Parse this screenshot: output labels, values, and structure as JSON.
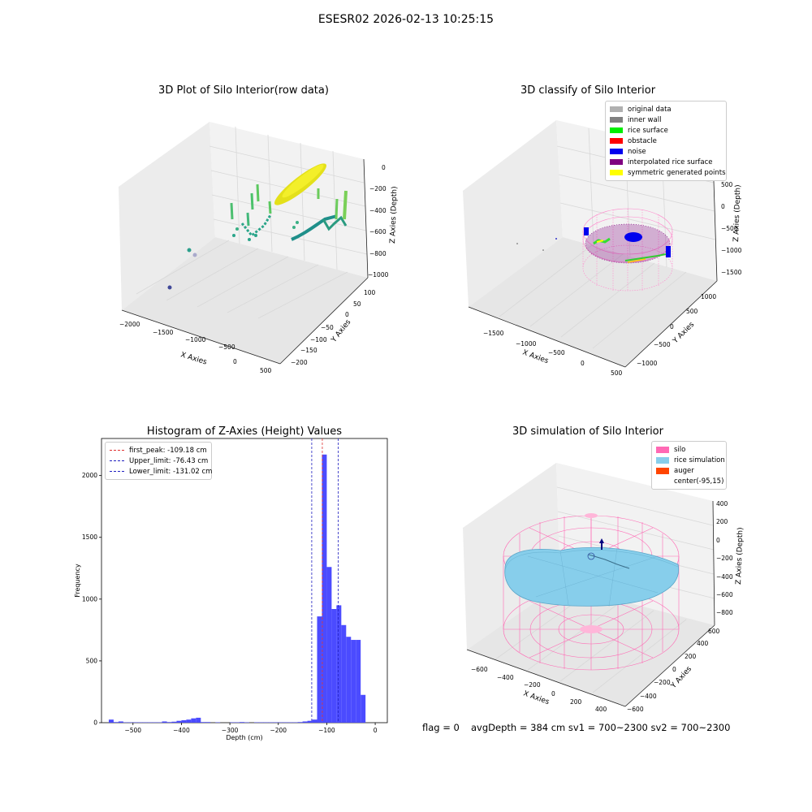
{
  "suptitle": "ESESR02 2026-02-13 10:25:15",
  "colors": {
    "hist_bar": "#4b4bff",
    "peak_line": "#e03030",
    "limit_line": "#2020c0",
    "silo": "#ff69b4",
    "rice": "#87ceeb",
    "auger": "#ff4500"
  },
  "panel1": {
    "title": "3D Plot of Silo Interior(row data)",
    "xlabel": "X Axies",
    "ylabel": "Y Axies",
    "zlabel": "Z Axies (Depth)",
    "xticks": [
      "−2000",
      "−1500",
      "−1000",
      "−500",
      "0",
      "500"
    ],
    "yticks": [
      "100",
      "50",
      "0",
      "−50",
      "−100",
      "−150",
      "−200"
    ],
    "zticks": [
      "0",
      "−200",
      "−400",
      "−600",
      "−800",
      "−1000"
    ]
  },
  "panel2": {
    "title": "3D classify of Silo Interior",
    "xlabel": "X Axies",
    "ylabel": "Y Axies",
    "zlabel": "Z Axies (Depth)",
    "xticks": [
      "−1500",
      "−1000",
      "−500",
      "0",
      "500"
    ],
    "yticks": [
      "1000",
      "500",
      "0",
      "−500",
      "−1000"
    ],
    "zticks": [
      "500",
      "0",
      "−500",
      "−1000",
      "−1500"
    ],
    "legend": [
      {
        "label": "original data",
        "color": "#b0b0b0"
      },
      {
        "label": "inner wall",
        "color": "#808080"
      },
      {
        "label": "rice surface",
        "color": "#00ee00"
      },
      {
        "label": "obstacle",
        "color": "#ff0000"
      },
      {
        "label": "noise",
        "color": "#0000ee"
      },
      {
        "label": "interpolated rice surface",
        "color": "#800080"
      },
      {
        "label": "symmetric generated points",
        "color": "#ffff00"
      }
    ]
  },
  "panel4": {
    "title": "3D simulation of Silo Interior",
    "xlabel": "X Axies",
    "ylabel": "Y Axies",
    "zlabel": "Z Axies (Depth)",
    "xticks": [
      "−600",
      "−400",
      "−200",
      "0",
      "200",
      "400"
    ],
    "yticks": [
      "600",
      "400",
      "200",
      "0",
      "−200",
      "−400",
      "−600"
    ],
    "zticks": [
      "400",
      "200",
      "0",
      "−200",
      "−400",
      "−600",
      "−800"
    ],
    "legend": [
      {
        "label": "silo",
        "color": "#ff69b4"
      },
      {
        "label": "rice simulation",
        "color": "#87ceeb"
      },
      {
        "label": "auger",
        "color": "#ff4500"
      },
      {
        "label": "center(-95,15)",
        "color": ""
      }
    ]
  },
  "footer": {
    "flag": "flag = 0",
    "stats": "avgDepth = 384 cm  sv1 = 700~2300  sv2 = 700~2300"
  },
  "chart_data": [
    {
      "type": "scatter",
      "title": "3D Plot of Silo Interior(row data)",
      "xlabel": "X Axies",
      "ylabel": "Y Axies",
      "zlabel": "Z Axies (Depth)",
      "xlim": [
        -2000,
        500
      ],
      "ylim": [
        -200,
        100
      ],
      "zlim": [
        -1000,
        0
      ]
    },
    {
      "type": "scatter",
      "title": "3D classify of Silo Interior",
      "xlabel": "X Axies",
      "ylabel": "Y Axies",
      "zlabel": "Z Axies (Depth)",
      "xlim": [
        -1500,
        500
      ],
      "ylim": [
        -1000,
        1000
      ],
      "zlim": [
        -1500,
        500
      ],
      "legend_position": "top-right"
    },
    {
      "type": "bar",
      "title": "Histogram of Z-Axies (Height) Values",
      "xlabel": "Depth (cm)",
      "ylabel": "Frequency",
      "xlim": [
        -565,
        25
      ],
      "ylim": [
        0,
        2300
      ],
      "xticks": [
        -500,
        -400,
        -300,
        -200,
        -100,
        0
      ],
      "yticks": [
        0,
        500,
        1000,
        1500,
        2000
      ],
      "bin_width": 10,
      "bins": [
        {
          "x": -545,
          "y": 25
        },
        {
          "x": -535,
          "y": 5
        },
        {
          "x": -525,
          "y": 10
        },
        {
          "x": -515,
          "y": 3
        },
        {
          "x": -505,
          "y": 3
        },
        {
          "x": -495,
          "y": 3
        },
        {
          "x": -485,
          "y": 3
        },
        {
          "x": -475,
          "y": 3
        },
        {
          "x": -465,
          "y": 3
        },
        {
          "x": -455,
          "y": 3
        },
        {
          "x": -445,
          "y": 3
        },
        {
          "x": -435,
          "y": 10
        },
        {
          "x": -425,
          "y": 5
        },
        {
          "x": -415,
          "y": 8
        },
        {
          "x": -405,
          "y": 15
        },
        {
          "x": -395,
          "y": 20
        },
        {
          "x": -385,
          "y": 25
        },
        {
          "x": -375,
          "y": 35
        },
        {
          "x": -365,
          "y": 40
        },
        {
          "x": -355,
          "y": 5
        },
        {
          "x": -345,
          "y": 5
        },
        {
          "x": -325,
          "y": 3
        },
        {
          "x": -295,
          "y": 3
        },
        {
          "x": -285,
          "y": 3
        },
        {
          "x": -275,
          "y": 5
        },
        {
          "x": -265,
          "y": 3
        },
        {
          "x": -245,
          "y": 3
        },
        {
          "x": -235,
          "y": 3
        },
        {
          "x": -225,
          "y": 3
        },
        {
          "x": -215,
          "y": 3
        },
        {
          "x": -205,
          "y": 3
        },
        {
          "x": -195,
          "y": 3
        },
        {
          "x": -185,
          "y": 3
        },
        {
          "x": -175,
          "y": 3
        },
        {
          "x": -165,
          "y": 3
        },
        {
          "x": -155,
          "y": 5
        },
        {
          "x": -145,
          "y": 10
        },
        {
          "x": -135,
          "y": 15
        },
        {
          "x": -125,
          "y": 25
        },
        {
          "x": -115,
          "y": 860
        },
        {
          "x": -105,
          "y": 2170
        },
        {
          "x": -95,
          "y": 1260
        },
        {
          "x": -85,
          "y": 920
        },
        {
          "x": -75,
          "y": 950
        },
        {
          "x": -65,
          "y": 790
        },
        {
          "x": -55,
          "y": 695
        },
        {
          "x": -45,
          "y": 670
        },
        {
          "x": -35,
          "y": 670
        },
        {
          "x": -25,
          "y": 225
        }
      ],
      "vlines": [
        {
          "label": "first_peak: -109.18 cm",
          "x": -109.18,
          "color": "#e03030"
        },
        {
          "label": "Upper_limit: -76.43 cm",
          "x": -76.43,
          "color": "#2020c0"
        },
        {
          "label": "Lower_limit: -131.02 cm",
          "x": -131.02,
          "color": "#2020c0"
        }
      ],
      "legend_position": "top-left"
    },
    {
      "type": "area",
      "title": "3D simulation of Silo Interior",
      "xlabel": "X Axies",
      "ylabel": "Y Axies",
      "zlabel": "Z Axies (Depth)",
      "xlim": [
        -600,
        400
      ],
      "ylim": [
        -600,
        600
      ],
      "zlim": [
        -800,
        400
      ],
      "legend_position": "top-right"
    }
  ]
}
